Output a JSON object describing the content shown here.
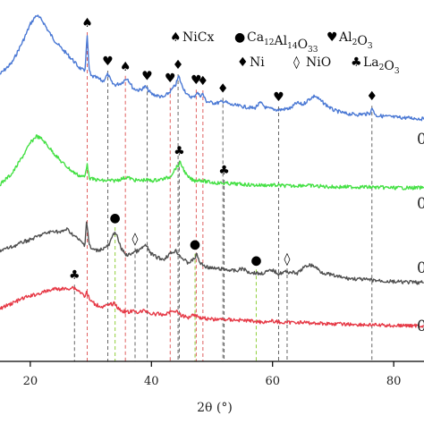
{
  "chart_data": {
    "type": "line",
    "title": "",
    "xlabel": "2θ (°)",
    "ylabel": "",
    "xlim": [
      15,
      85
    ],
    "xticks": [
      20,
      40,
      60,
      80
    ],
    "grid": false,
    "legend": [
      {
        "symbol": "♠",
        "label": "NiCx"
      },
      {
        "symbol": "●",
        "label": "Ca12Al14O33",
        "formula": [
          [
            "Ca",
            "12"
          ],
          [
            "Al",
            "14"
          ],
          [
            "O",
            "33"
          ]
        ]
      },
      {
        "symbol": "♥",
        "label": "Al2O3",
        "formula": [
          [
            "Al",
            "2"
          ],
          [
            "O",
            "3"
          ]
        ]
      },
      {
        "symbol": "♦",
        "label": "Ni"
      },
      {
        "symbol": "◊",
        "label": "NiO"
      },
      {
        "symbol": "♣",
        "label": "La2O3",
        "formula": [
          [
            "La",
            "2"
          ],
          [
            "O",
            "3"
          ]
        ]
      }
    ],
    "series": [
      {
        "label": "0",
        "color": "#4a78d4",
        "baseline": 135,
        "points": [
          [
            15,
            52
          ],
          [
            17,
            65
          ],
          [
            19,
            92
          ],
          [
            20,
            108
          ],
          [
            21,
            118
          ],
          [
            22,
            112
          ],
          [
            23,
            100
          ],
          [
            24,
            90
          ],
          [
            25,
            82
          ],
          [
            26,
            75
          ],
          [
            27,
            68
          ],
          [
            28,
            60
          ],
          [
            29,
            55
          ],
          [
            29.4,
            95
          ],
          [
            29.7,
            58
          ],
          [
            30,
            50
          ],
          [
            31,
            48
          ],
          [
            32,
            44
          ],
          [
            32.8,
            52
          ],
          [
            33.5,
            42
          ],
          [
            34,
            40
          ],
          [
            35,
            42
          ],
          [
            36,
            48
          ],
          [
            37,
            36
          ],
          [
            38,
            34
          ],
          [
            39,
            38
          ],
          [
            40,
            30
          ],
          [
            41,
            28
          ],
          [
            42,
            26
          ],
          [
            43,
            32
          ],
          [
            44,
            40
          ],
          [
            44.5,
            50
          ],
          [
            45,
            40
          ],
          [
            46,
            28
          ],
          [
            47,
            26
          ],
          [
            47.5,
            32
          ],
          [
            48,
            28
          ],
          [
            48.5,
            30
          ],
          [
            49,
            22
          ],
          [
            50,
            20
          ],
          [
            51,
            20
          ],
          [
            52,
            22
          ],
          [
            53,
            18
          ],
          [
            55,
            16
          ],
          [
            57,
            14
          ],
          [
            58,
            20
          ],
          [
            59,
            14
          ],
          [
            61,
            12
          ],
          [
            63,
            14
          ],
          [
            64,
            20
          ],
          [
            65,
            18
          ],
          [
            66,
            24
          ],
          [
            67,
            28
          ],
          [
            68,
            22
          ],
          [
            70,
            12
          ],
          [
            72,
            8
          ],
          [
            74,
            7
          ],
          [
            76,
            8
          ],
          [
            76.5,
            14
          ],
          [
            77,
            6
          ],
          [
            80,
            4
          ],
          [
            83,
            3
          ],
          [
            85,
            2
          ]
        ]
      },
      {
        "label": "0",
        "color": "#44e044",
        "baseline": 210,
        "points": [
          [
            15,
            4
          ],
          [
            17,
            16
          ],
          [
            19,
            38
          ],
          [
            20,
            50
          ],
          [
            21,
            58
          ],
          [
            22,
            54
          ],
          [
            23,
            46
          ],
          [
            24,
            38
          ],
          [
            25,
            30
          ],
          [
            26,
            24
          ],
          [
            27,
            18
          ],
          [
            28,
            14
          ],
          [
            29,
            12
          ],
          [
            29.4,
            28
          ],
          [
            29.7,
            12
          ],
          [
            30,
            10
          ],
          [
            31,
            9
          ],
          [
            32,
            8
          ],
          [
            33,
            8
          ],
          [
            34,
            8
          ],
          [
            35,
            10
          ],
          [
            36,
            12
          ],
          [
            37,
            9
          ],
          [
            38,
            8
          ],
          [
            39,
            9
          ],
          [
            40,
            8
          ],
          [
            41,
            9
          ],
          [
            42,
            10
          ],
          [
            43,
            12
          ],
          [
            44,
            22
          ],
          [
            44.8,
            28
          ],
          [
            45.5,
            18
          ],
          [
            46,
            12
          ],
          [
            47,
            8
          ],
          [
            48,
            9
          ],
          [
            49,
            7
          ],
          [
            50,
            6
          ],
          [
            52,
            5
          ],
          [
            55,
            4
          ],
          [
            57,
            3
          ],
          [
            60,
            3
          ],
          [
            63,
            2
          ],
          [
            65,
            3
          ],
          [
            67,
            2
          ],
          [
            70,
            1
          ],
          [
            75,
            1
          ],
          [
            80,
            0
          ],
          [
            85,
            0
          ]
        ]
      },
      {
        "label": "0",
        "color": "#505050",
        "baseline": 318,
        "points": [
          [
            15,
            38
          ],
          [
            17,
            42
          ],
          [
            19,
            48
          ],
          [
            20,
            50
          ],
          [
            22,
            56
          ],
          [
            24,
            60
          ],
          [
            25,
            58
          ],
          [
            26,
            62
          ],
          [
            27,
            56
          ],
          [
            28,
            50
          ],
          [
            29,
            44
          ],
          [
            29.3,
            72
          ],
          [
            29.7,
            46
          ],
          [
            30,
            40
          ],
          [
            31,
            38
          ],
          [
            32,
            40
          ],
          [
            33,
            44
          ],
          [
            34,
            60
          ],
          [
            34.5,
            50
          ],
          [
            35,
            40
          ],
          [
            36,
            32
          ],
          [
            37,
            36
          ],
          [
            38,
            38
          ],
          [
            39,
            44
          ],
          [
            40,
            34
          ],
          [
            41,
            30
          ],
          [
            42,
            28
          ],
          [
            43,
            34
          ],
          [
            44,
            38
          ],
          [
            45,
            30
          ],
          [
            46,
            24
          ],
          [
            47,
            28
          ],
          [
            47.5,
            34
          ],
          [
            48,
            24
          ],
          [
            49,
            20
          ],
          [
            50,
            18
          ],
          [
            52,
            17
          ],
          [
            54,
            15
          ],
          [
            55,
            18
          ],
          [
            56,
            14
          ],
          [
            58,
            12
          ],
          [
            59,
            14
          ],
          [
            60,
            16
          ],
          [
            61,
            12
          ],
          [
            62,
            14
          ],
          [
            63,
            14
          ],
          [
            64,
            12
          ],
          [
            65,
            18
          ],
          [
            66,
            22
          ],
          [
            67,
            20
          ],
          [
            68,
            14
          ],
          [
            70,
            10
          ],
          [
            72,
            7
          ],
          [
            74,
            6
          ],
          [
            76,
            5
          ],
          [
            80,
            3
          ],
          [
            85,
            2
          ]
        ]
      },
      {
        "label": "0",
        "color": "#e63946",
        "baseline": 365,
        "points": [
          [
            15,
            20
          ],
          [
            17,
            26
          ],
          [
            19,
            32
          ],
          [
            20,
            34
          ],
          [
            22,
            38
          ],
          [
            24,
            42
          ],
          [
            26,
            42
          ],
          [
            27,
            44
          ],
          [
            28,
            40
          ],
          [
            29,
            34
          ],
          [
            29.3,
            38
          ],
          [
            30,
            28
          ],
          [
            31,
            24
          ],
          [
            32,
            22
          ],
          [
            33,
            24
          ],
          [
            34,
            26
          ],
          [
            34.5,
            20
          ],
          [
            35,
            18
          ],
          [
            36,
            16
          ],
          [
            37,
            17
          ],
          [
            38,
            16
          ],
          [
            39,
            18
          ],
          [
            40,
            14
          ],
          [
            41,
            14
          ],
          [
            42,
            13
          ],
          [
            43,
            16
          ],
          [
            44,
            18
          ],
          [
            45,
            12
          ],
          [
            46,
            10
          ],
          [
            47,
            14
          ],
          [
            48,
            10
          ],
          [
            49,
            9
          ],
          [
            50,
            8
          ],
          [
            52,
            8
          ],
          [
            55,
            7
          ],
          [
            57,
            6
          ],
          [
            58,
            5
          ],
          [
            60,
            6
          ],
          [
            62,
            4
          ],
          [
            64,
            5
          ],
          [
            66,
            4
          ],
          [
            70,
            3
          ],
          [
            75,
            2
          ],
          [
            80,
            1
          ],
          [
            85,
            1
          ]
        ]
      }
    ],
    "peak_markers": [
      {
        "x": 29.4,
        "color": "#e06060",
        "symbol": "♠",
        "series": 0
      },
      {
        "x": 32.8,
        "color": "#666666",
        "symbol": "♥",
        "series": 0
      },
      {
        "x": 35.7,
        "color": "#e06060",
        "symbol": "♠",
        "series": 0
      },
      {
        "x": 39.3,
        "color": "#666666",
        "symbol": "♥",
        "series": 0
      },
      {
        "x": 43.1,
        "color": "#e06060",
        "symbol": "♥",
        "series": 0
      },
      {
        "x": 44.4,
        "color": "#666666",
        "symbol": "♦",
        "series": 0
      },
      {
        "x": 47.4,
        "color": "#e06060",
        "symbol": "♥",
        "series": 0
      },
      {
        "x": 48.5,
        "color": "#e06060",
        "symbol": "♦",
        "series": 0
      },
      {
        "x": 51.8,
        "color": "#666666",
        "symbol": "♦",
        "series": 0
      },
      {
        "x": 61.0,
        "color": "#666666",
        "symbol": "♥",
        "series": 0
      },
      {
        "x": 76.4,
        "color": "#666666",
        "symbol": "♦",
        "series": 0
      },
      {
        "x": 44.6,
        "color": "#666666",
        "symbol": "♣",
        "series": 1
      },
      {
        "x": 52.0,
        "color": "#666666",
        "symbol": "♣",
        "series": 1
      },
      {
        "x": 34.0,
        "color": "#8fcf3a",
        "symbol": "●",
        "series": 2
      },
      {
        "x": 37.3,
        "color": "#666666",
        "symbol": "◊",
        "series": 2
      },
      {
        "x": 47.2,
        "color": "#8fcf3a",
        "symbol": "●",
        "series": 2
      },
      {
        "x": 57.3,
        "color": "#8fcf3a",
        "symbol": "●",
        "series": 2
      },
      {
        "x": 62.4,
        "color": "#666666",
        "symbol": "◊",
        "series": 2
      },
      {
        "x": 27.3,
        "color": "#666666",
        "symbol": "♣",
        "series": 3
      }
    ]
  }
}
